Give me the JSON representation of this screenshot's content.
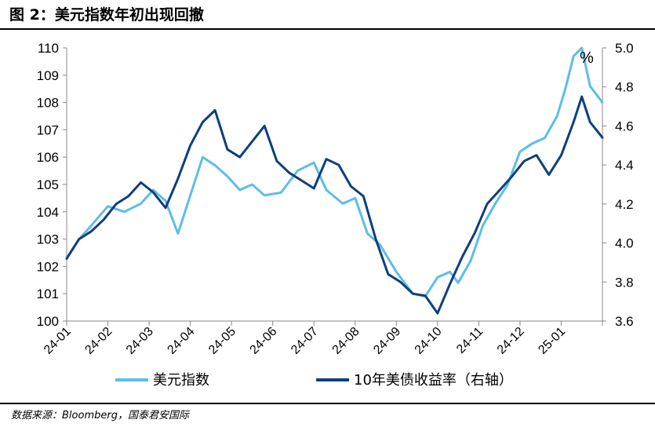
{
  "figure": {
    "title": "图 2：美元指数年初出现回撤",
    "source": "数据来源：Bloomberg，国泰君安国际"
  },
  "chart_data": {
    "type": "line",
    "x_categories": [
      "24-01",
      "24-02",
      "24-03",
      "24-04",
      "24-05",
      "24-06",
      "24-07",
      "24-08",
      "24-09",
      "24-10",
      "24-11",
      "24-12",
      "25-01"
    ],
    "left_axis": {
      "min": 100,
      "max": 110,
      "ticks": [
        "110",
        "109",
        "108",
        "107",
        "106",
        "105",
        "104",
        "103",
        "102",
        "101",
        "100"
      ]
    },
    "right_axis": {
      "min": 3.6,
      "max": 5.0,
      "unit": "%",
      "ticks": [
        "5.0",
        "4.8",
        "4.6",
        "4.4",
        "4.2",
        "4.0",
        "3.8",
        "3.6"
      ]
    },
    "colors": {
      "dxy": "#5dbde8",
      "ust10y": "#0e3f7e"
    },
    "series": [
      {
        "name": "美元指数",
        "axis": "left",
        "color": "#5dbde8",
        "x": [
          0,
          0.3,
          0.6,
          1,
          1.4,
          1.8,
          2.1,
          2.4,
          2.7,
          3,
          3.3,
          3.6,
          3.9,
          4.2,
          4.5,
          4.8,
          5.2,
          5.6,
          6,
          6.3,
          6.7,
          7,
          7.3,
          7.6,
          8,
          8.4,
          8.7,
          9,
          9.3,
          9.5,
          9.8,
          10.1,
          10.4,
          10.7,
          11,
          11.3,
          11.6,
          11.9,
          12.1,
          12.3,
          12.5,
          12.7,
          13
        ],
        "values": [
          102.3,
          103.0,
          103.5,
          104.2,
          104.0,
          104.3,
          104.8,
          104.4,
          103.2,
          104.6,
          106.0,
          105.7,
          105.3,
          104.8,
          105.0,
          104.6,
          104.7,
          105.5,
          105.8,
          104.8,
          104.3,
          104.5,
          103.2,
          102.8,
          101.8,
          101.0,
          100.9,
          101.6,
          101.8,
          101.4,
          102.2,
          103.5,
          104.3,
          105.0,
          106.2,
          106.5,
          106.7,
          107.5,
          108.5,
          109.7,
          110.0,
          108.6,
          108.0
        ]
      },
      {
        "name": "10年美债收益率（右轴）",
        "axis": "right",
        "color": "#0e3f7e",
        "x": [
          0,
          0.3,
          0.6,
          0.9,
          1.2,
          1.5,
          1.8,
          2.1,
          2.4,
          2.7,
          3,
          3.3,
          3.6,
          3.9,
          4.2,
          4.5,
          4.8,
          5.1,
          5.4,
          5.7,
          6,
          6.3,
          6.6,
          6.9,
          7.2,
          7.5,
          7.8,
          8.1,
          8.4,
          8.7,
          9,
          9.3,
          9.6,
          9.9,
          10.2,
          10.5,
          10.8,
          11.1,
          11.4,
          11.7,
          12,
          12.3,
          12.5,
          12.7,
          13
        ],
        "values": [
          3.92,
          4.02,
          4.06,
          4.12,
          4.2,
          4.24,
          4.31,
          4.26,
          4.18,
          4.33,
          4.5,
          4.62,
          4.68,
          4.48,
          4.44,
          4.52,
          4.6,
          4.42,
          4.36,
          4.32,
          4.28,
          4.43,
          4.4,
          4.29,
          4.24,
          4.02,
          3.84,
          3.8,
          3.74,
          3.73,
          3.64,
          3.79,
          3.93,
          4.05,
          4.2,
          4.27,
          4.34,
          4.42,
          4.45,
          4.35,
          4.45,
          4.62,
          4.75,
          4.62,
          4.54
        ]
      }
    ]
  },
  "legend": {
    "items": [
      {
        "label": "美元指数",
        "color": "#5dbde8"
      },
      {
        "label": "10年美债收益率（右轴）",
        "color": "#0e3f7e"
      }
    ],
    "position": "bottom"
  }
}
